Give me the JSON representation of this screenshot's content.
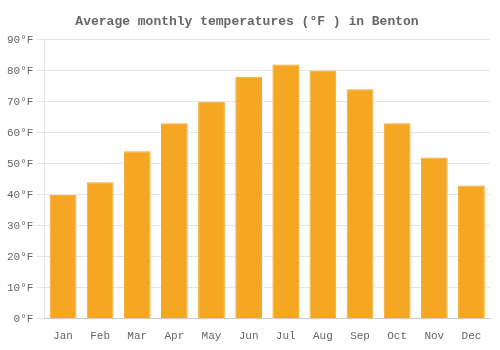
{
  "chart_data": {
    "type": "bar",
    "title": "Average monthly temperatures (°F ) in Benton",
    "categories": [
      "Jan",
      "Feb",
      "Mar",
      "Apr",
      "May",
      "Jun",
      "Jul",
      "Aug",
      "Sep",
      "Oct",
      "Nov",
      "Dec"
    ],
    "values": [
      40,
      44,
      54,
      63,
      70,
      78,
      82,
      80,
      74,
      63,
      52,
      43
    ],
    "color": "#F5A623",
    "ylim": [
      0,
      90
    ],
    "yticks": [
      {
        "value": 0,
        "label": "0°F"
      },
      {
        "value": 10,
        "label": "10°F"
      },
      {
        "value": 20,
        "label": "20°F"
      },
      {
        "value": 30,
        "label": "30°F"
      },
      {
        "value": 40,
        "label": "40°F"
      },
      {
        "value": 50,
        "label": "50°F"
      },
      {
        "value": 60,
        "label": "60°F"
      },
      {
        "value": 70,
        "label": "70°F"
      },
      {
        "value": 80,
        "label": "80°F"
      },
      {
        "value": 90,
        "label": "90°F"
      }
    ],
    "grid": true
  }
}
